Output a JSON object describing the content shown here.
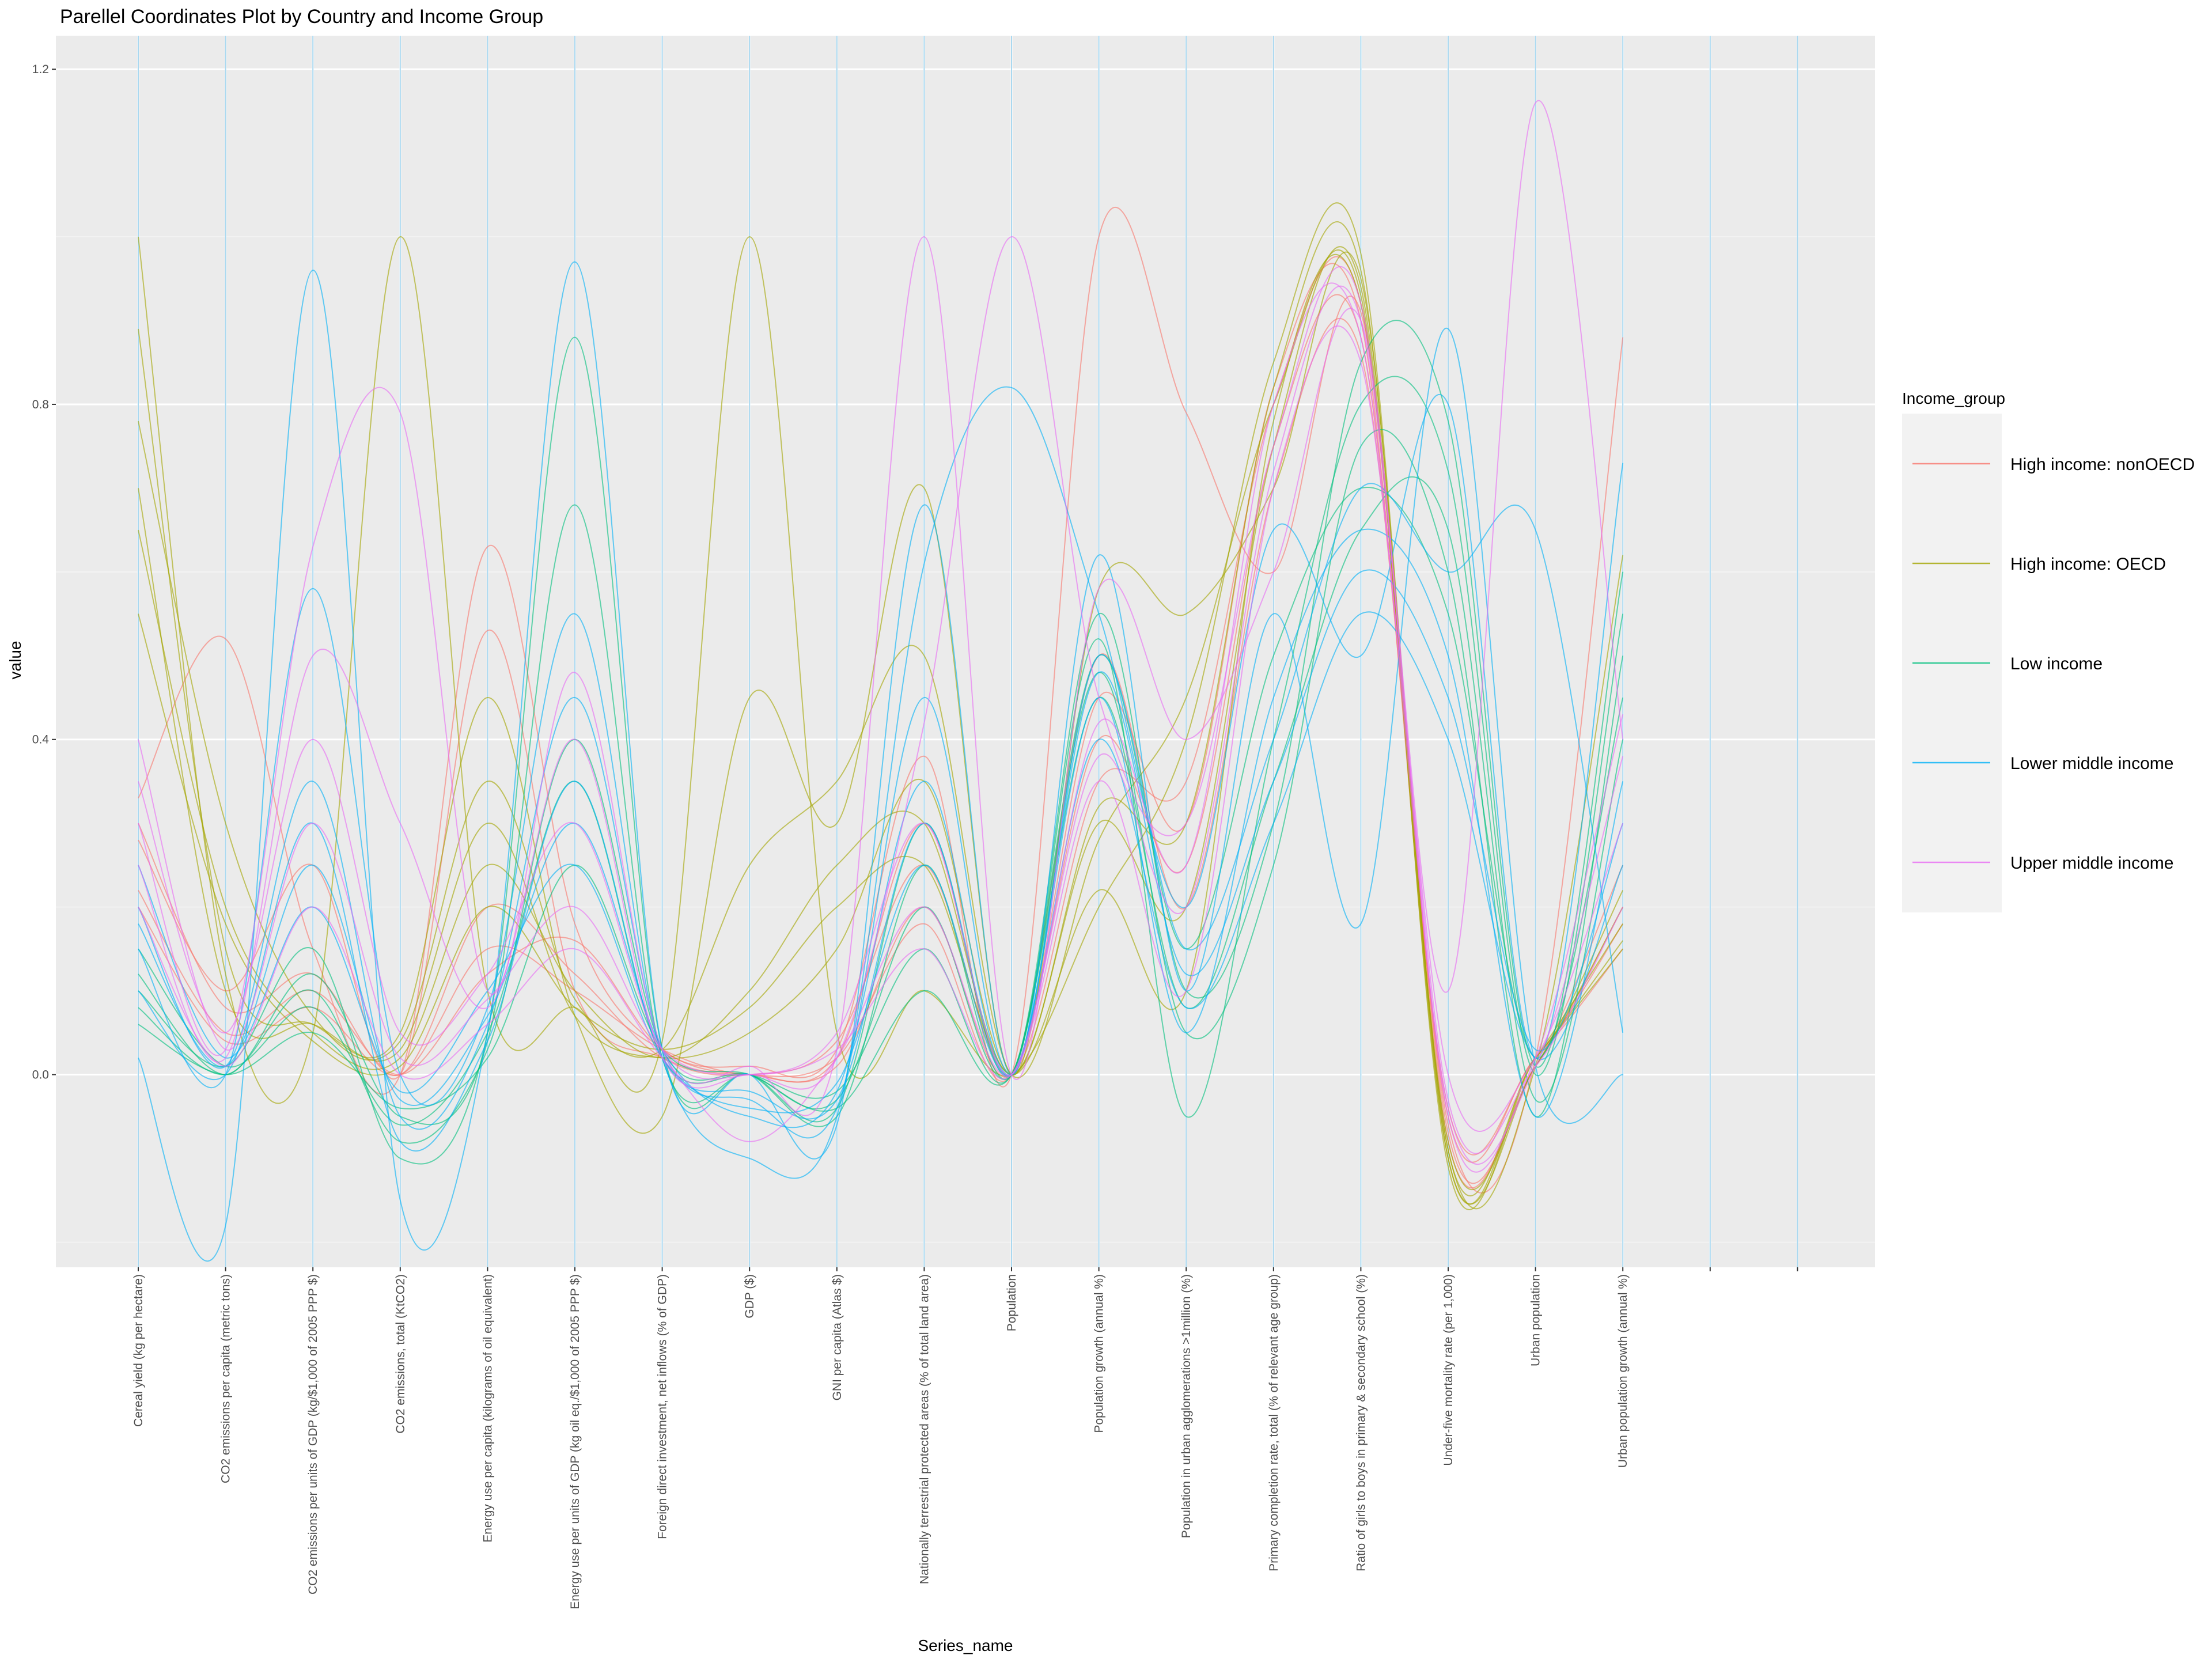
{
  "chart_data": {
    "type": "line",
    "title": "Parellel Coordinates Plot by Country and Income Group",
    "xlabel": "Series_name",
    "ylabel": "value",
    "ylim": [
      -0.23,
      1.24
    ],
    "y_ticks": [
      0.0,
      0.4,
      0.8,
      1.2
    ],
    "y_tick_labels": [
      "0.0",
      "0.4",
      "0.8",
      "1.2"
    ],
    "grid": true,
    "legend_position": "right",
    "legend_title": "Income_group",
    "categories": [
      "Cereal yield (kg per hectare)",
      "CO2 emissions per capita (metric tons)",
      "CO2 emissions per units of GDP (kg/$1,000 of 2005 PPP $)",
      "CO2 emissions, total (KtCO2)",
      "Energy use per capita (kilograms of oil equivalent)",
      "Energy use per units of GDP (kg oil eq./$1,000 of 2005 PPP $)",
      "Foreign direct investment, net inflows (% of GDP)",
      "GDP ($)",
      "GNI per capita (Atlas $)",
      "Nationally terrestrial protected areas (% of total land area)",
      "Population",
      "Population growth (annual %)",
      "Population in urban agglomerations >1million (%)",
      "Primary completion rate, total (% of relevant age group)",
      "Ratio of girls to boys in primary & secondary school (%)",
      "Under-five mortality rate (per 1,000)",
      "Urban population",
      "Urban population growth (annual %)"
    ],
    "extra_axis_slots": 2,
    "series": [
      {
        "name": "High income: nonOECD",
        "color": "#F8766D",
        "lines": [
          [
            0.33,
            0.52,
            0.15,
            0.0,
            0.63,
            0.18,
            0.03,
            0.01,
            0.03,
            0.38,
            0.0,
            1.0,
            0.79,
            0.6,
            0.91,
            -0.06,
            0.02,
            0.88
          ],
          [
            0.28,
            0.1,
            0.25,
            0.0,
            0.53,
            0.1,
            0.02,
            0.0,
            0.02,
            0.3,
            0.0,
            0.45,
            0.3,
            0.82,
            0.9,
            -0.08,
            0.01,
            0.2
          ],
          [
            0.22,
            0.05,
            0.1,
            0.0,
            0.12,
            0.16,
            0.03,
            0.0,
            0.01,
            0.2,
            0.0,
            0.4,
            0.25,
            0.75,
            0.88,
            -0.05,
            0.02,
            0.15
          ],
          [
            0.3,
            0.08,
            0.12,
            0.0,
            0.2,
            0.12,
            0.02,
            0.0,
            0.04,
            0.25,
            0.0,
            0.35,
            0.35,
            0.8,
            0.92,
            -0.07,
            0.01,
            0.25
          ],
          [
            0.2,
            0.04,
            0.08,
            0.0,
            0.15,
            0.1,
            0.03,
            0.0,
            0.02,
            0.18,
            0.0,
            0.5,
            0.2,
            0.7,
            0.86,
            -0.04,
            0.02,
            0.18
          ]
        ]
      },
      {
        "name": "High income: OECD",
        "color": "#A3A500",
        "lines": [
          [
            1.0,
            0.12,
            0.05,
            1.0,
            0.1,
            0.08,
            0.04,
            1.0,
            0.05,
            0.1,
            0.0,
            0.2,
            0.4,
            0.85,
            0.98,
            -0.1,
            0.02,
            0.15
          ],
          [
            0.89,
            0.15,
            0.06,
            0.05,
            0.45,
            0.07,
            -0.05,
            0.45,
            0.3,
            0.7,
            0.0,
            0.58,
            0.55,
            0.7,
            0.95,
            -0.09,
            0.01,
            0.62
          ],
          [
            0.78,
            0.3,
            0.07,
            0.04,
            0.35,
            0.09,
            0.03,
            0.25,
            0.35,
            0.5,
            0.0,
            0.28,
            0.45,
            0.8,
            0.93,
            -0.1,
            0.01,
            0.2
          ],
          [
            0.65,
            0.2,
            0.05,
            0.02,
            0.25,
            0.1,
            0.02,
            0.1,
            0.25,
            0.3,
            0.0,
            0.3,
            0.2,
            0.75,
            0.94,
            -0.11,
            0.02,
            0.18
          ],
          [
            0.55,
            0.18,
            0.04,
            0.01,
            0.2,
            0.08,
            0.03,
            0.08,
            0.2,
            0.25,
            0.0,
            0.22,
            0.1,
            0.78,
            0.92,
            -0.08,
            0.01,
            0.22
          ],
          [
            0.7,
            0.1,
            0.06,
            0.03,
            0.3,
            0.07,
            0.02,
            0.05,
            0.15,
            0.35,
            0.0,
            0.32,
            0.3,
            0.82,
            0.96,
            -0.09,
            0.02,
            0.16
          ]
        ]
      },
      {
        "name": "Low income",
        "color": "#00BF7D",
        "lines": [
          [
            0.1,
            0.01,
            0.15,
            -0.1,
            0.05,
            0.88,
            0.03,
            0.0,
            -0.05,
            0.25,
            0.0,
            0.55,
            0.1,
            0.3,
            0.85,
            0.78,
            0.01,
            0.6
          ],
          [
            0.12,
            0.0,
            0.12,
            -0.05,
            0.04,
            0.68,
            0.02,
            0.0,
            -0.04,
            0.3,
            0.0,
            0.52,
            -0.05,
            0.4,
            0.8,
            0.72,
            0.0,
            0.55
          ],
          [
            0.08,
            0.0,
            0.1,
            -0.08,
            0.03,
            0.4,
            0.03,
            0.0,
            -0.03,
            0.2,
            0.0,
            0.48,
            0.05,
            0.25,
            0.75,
            0.6,
            -0.05,
            0.5
          ],
          [
            0.15,
            0.01,
            0.08,
            -0.06,
            0.05,
            0.35,
            0.02,
            0.0,
            -0.02,
            0.15,
            0.0,
            0.5,
            0.15,
            0.5,
            0.7,
            0.55,
            0.02,
            0.45
          ],
          [
            0.06,
            0.0,
            0.05,
            -0.04,
            0.02,
            0.25,
            0.03,
            0.0,
            -0.04,
            0.1,
            0.0,
            0.45,
            0.08,
            0.35,
            0.65,
            0.65,
            -0.03,
            0.4
          ]
        ]
      },
      {
        "name": "Lower middle income",
        "color": "#00B0F6",
        "lines": [
          [
            0.02,
            -0.18,
            0.96,
            -0.15,
            0.05,
            0.97,
            0.03,
            0.0,
            -0.06,
            0.68,
            0.0,
            0.62,
            0.1,
            0.55,
            0.18,
            0.89,
            0.01,
            0.0
          ],
          [
            0.15,
            0.0,
            0.58,
            0.0,
            0.08,
            0.55,
            0.02,
            -0.1,
            -0.05,
            0.61,
            0.82,
            0.55,
            0.2,
            0.65,
            0.5,
            0.8,
            0.02,
            0.73
          ],
          [
            0.2,
            0.01,
            0.35,
            -0.05,
            0.06,
            0.45,
            0.03,
            -0.03,
            -0.04,
            0.45,
            0.0,
            0.5,
            0.15,
            0.4,
            0.7,
            0.6,
            0.65,
            0.05
          ],
          [
            0.1,
            0.0,
            0.3,
            -0.08,
            0.04,
            0.35,
            0.02,
            -0.02,
            -0.03,
            0.3,
            0.0,
            0.45,
            0.05,
            0.45,
            0.65,
            0.5,
            -0.05,
            0.35
          ],
          [
            0.18,
            0.01,
            0.25,
            -0.03,
            0.07,
            0.3,
            0.03,
            -0.05,
            -0.02,
            0.35,
            0.0,
            0.48,
            0.12,
            0.35,
            0.6,
            0.45,
            0.03,
            0.3
          ],
          [
            0.25,
            0.02,
            0.2,
            -0.02,
            0.1,
            0.25,
            0.02,
            -0.04,
            -0.01,
            0.25,
            0.0,
            0.4,
            0.08,
            0.3,
            0.55,
            0.4,
            0.02,
            0.25
          ]
        ]
      },
      {
        "name": "Upper middle income",
        "color": "#E76BF3",
        "lines": [
          [
            0.3,
            0.03,
            0.63,
            0.79,
            0.1,
            0.48,
            0.03,
            0.01,
            0.03,
            1.0,
            0.0,
            0.58,
            0.4,
            0.6,
            0.9,
            0.1,
            1.16,
            0.4
          ],
          [
            0.25,
            0.02,
            0.5,
            0.3,
            0.08,
            0.4,
            0.02,
            0.0,
            0.02,
            0.42,
            1.0,
            0.45,
            0.3,
            0.75,
            0.92,
            -0.05,
            0.02,
            0.43
          ],
          [
            0.35,
            0.05,
            0.4,
            0.05,
            0.12,
            0.3,
            0.03,
            0.0,
            0.05,
            0.3,
            0.0,
            0.42,
            0.25,
            0.8,
            0.88,
            -0.04,
            0.01,
            0.38
          ],
          [
            0.2,
            0.01,
            0.2,
            0.0,
            0.06,
            0.15,
            0.02,
            -0.08,
            0.02,
            0.2,
            0.0,
            0.35,
            0.1,
            0.7,
            0.85,
            0.0,
            0.02,
            0.3
          ],
          [
            0.4,
            0.03,
            0.3,
            0.02,
            0.09,
            0.2,
            0.03,
            0.0,
            0.03,
            0.15,
            0.0,
            0.38,
            0.2,
            0.72,
            0.9,
            -0.03,
            0.01,
            0.2
          ]
        ]
      }
    ]
  }
}
